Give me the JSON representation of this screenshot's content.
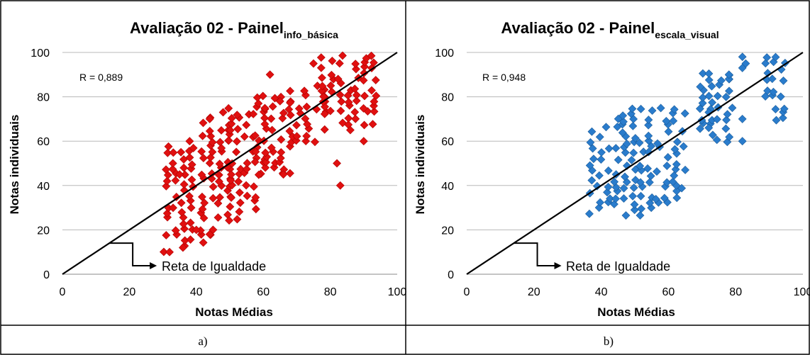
{
  "chart_data": [
    {
      "type": "scatter",
      "title": "Avaliação 02 - Painel",
      "title_subscript": "info_básica",
      "xlabel": "Notas Médias",
      "ylabel": "Notas individuais",
      "xlim": [
        0,
        100
      ],
      "ylim": [
        0,
        100
      ],
      "xticks": [
        "0",
        "20",
        "40",
        "60",
        "80",
        "100"
      ],
      "yticks": [
        "0",
        "20",
        "40",
        "60",
        "80",
        "100"
      ],
      "grid": "horizontal",
      "marker_color": "#e01010",
      "annotation": "R = 0,889",
      "equality_line_label": "Reta de Igualdade",
      "caption": "a)",
      "clusters": [
        {
          "x": [
            31,
            40
          ],
          "y": [
            10,
            58
          ]
        },
        {
          "x": [
            42,
            50
          ],
          "y": [
            15,
            70
          ]
        },
        {
          "x": [
            50,
            60
          ],
          "y": [
            25,
            75
          ]
        },
        {
          "x": [
            58,
            68
          ],
          "y": [
            45,
            80
          ]
        },
        {
          "x": [
            68,
            78
          ],
          "y": [
            60,
            85
          ]
        },
        {
          "x": [
            78,
            95
          ],
          "y": [
            68,
            100
          ]
        }
      ],
      "points": [
        [
          83,
          40
        ],
        [
          82,
          50
        ],
        [
          90,
          60
        ],
        [
          66,
          45
        ],
        [
          44,
          70
        ],
        [
          48,
          73
        ],
        [
          62,
          90
        ],
        [
          86,
          65
        ],
        [
          38,
          60
        ],
        [
          35,
          45
        ],
        [
          33,
          50
        ],
        [
          40,
          20
        ],
        [
          32,
          10
        ],
        [
          36,
          12
        ],
        [
          44,
          18
        ],
        [
          75,
          95
        ],
        [
          65,
          78
        ]
      ]
    },
    {
      "type": "scatter",
      "title": "Avaliação 02 - Painel",
      "title_subscript": "escala_visual",
      "xlabel": "Notas Médias",
      "ylabel": "Notas individuais",
      "xlim": [
        0,
        100
      ],
      "ylim": [
        0,
        100
      ],
      "xticks": [
        "0",
        "20",
        "40",
        "60",
        "80",
        "100"
      ],
      "yticks": [
        "0",
        "20",
        "40",
        "60",
        "80",
        "100"
      ],
      "grid": "horizontal",
      "marker_color": "#2a7ccc",
      "annotation": "R = 0,948",
      "equality_line_label": "Reta de Igualdade",
      "caption": "b)",
      "clusters": [
        {
          "x": [
            37,
            65
          ],
          "y": [
            27,
            76
          ]
        },
        {
          "x": [
            70,
            78
          ],
          "y": [
            60,
            90
          ]
        },
        {
          "x": [
            89,
            95
          ],
          "y": [
            70,
            100
          ]
        }
      ],
      "points": [
        [
          82,
          60
        ],
        [
          82,
          70
        ],
        [
          83,
          95
        ],
        [
          82,
          98
        ],
        [
          82,
          93
        ],
        [
          79,
          75
        ],
        [
          78,
          88
        ],
        [
          72,
          66
        ],
        [
          72,
          73
        ],
        [
          78,
          90
        ]
      ]
    }
  ]
}
